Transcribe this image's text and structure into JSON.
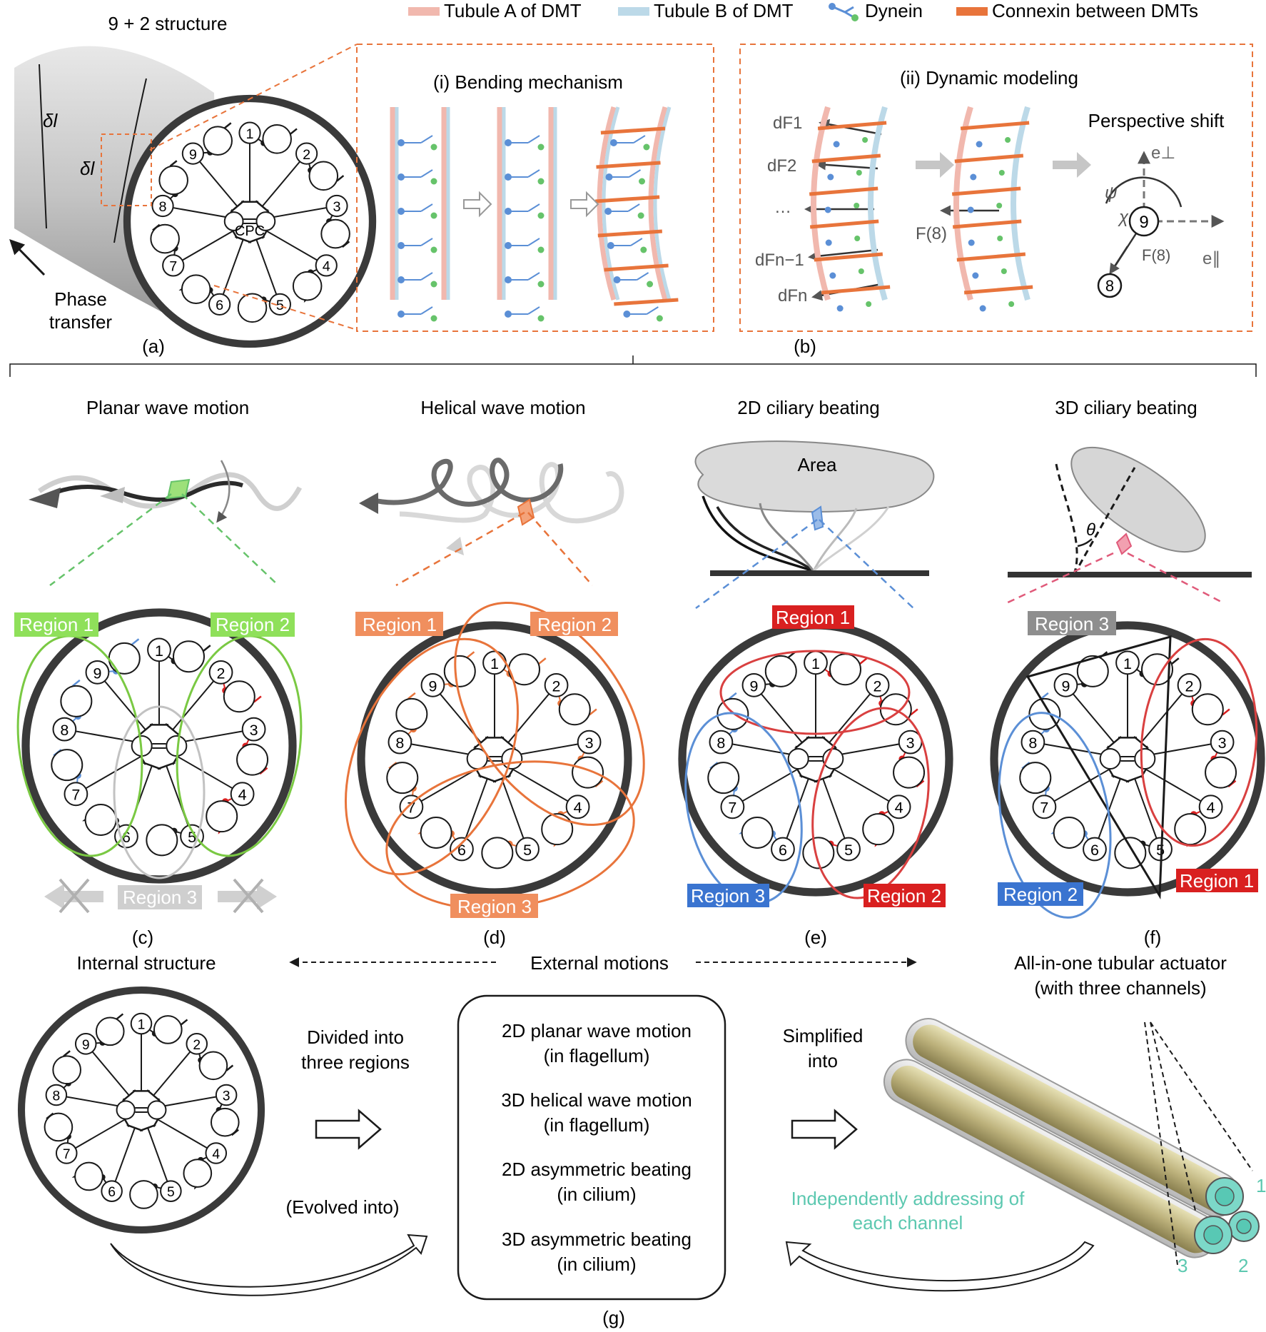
{
  "legend": [
    {
      "label": "Tubule A of DMT",
      "color": "#f1b8ae",
      "icon": "tubule-a-swatch"
    },
    {
      "label": "Tubule B of DMT",
      "color": "#bcd9e8",
      "icon": "tubule-b-swatch"
    },
    {
      "label": "Dynein",
      "color": "#5b8fd6",
      "icon": "dynein-icon"
    },
    {
      "label": "Connexin between DMTs",
      "color": "#e8743b",
      "icon": "connexin-swatch"
    }
  ],
  "panel_a": {
    "title": "9 + 2 structure",
    "dl1": "δl",
    "dl2": "δl",
    "cpc": "CPC",
    "phase1": "Phase",
    "phase2": "transfer",
    "caption": "(a)"
  },
  "panel_b": {
    "sub_i": "(i) Bending mechanism",
    "sub_ii": "(ii) Dynamic modeling",
    "perspective": "Perspective shift",
    "forces": [
      "dF1",
      "dF2",
      "…",
      "dFn−1",
      "dFn"
    ],
    "f8": "F(8)",
    "e_perp": "e⊥",
    "e_par": "e∥",
    "psi": "ψ",
    "chi": "χ",
    "caption": "(b)"
  },
  "motions": [
    {
      "title": "Planar wave motion",
      "caption": "(c)",
      "regions": [
        "Region 1",
        "Region 2",
        "Region 3"
      ]
    },
    {
      "title": "Helical wave motion",
      "caption": "(d)",
      "regions": [
        "Region 1",
        "Region 2",
        "Region 3"
      ]
    },
    {
      "title": "2D ciliary beating",
      "caption": "(e)",
      "area": "Area",
      "regions": [
        "Region 1",
        "Region 3",
        "Region 2"
      ]
    },
    {
      "title": "3D ciliary beating",
      "caption": "(f)",
      "theta": "θ",
      "regions": [
        "Region 3",
        "Region 2",
        "Region 1"
      ]
    }
  ],
  "bottom": {
    "internal": "Internal structure",
    "external": "External motions",
    "actuator1": "All-in-one tubular actuator",
    "actuator2": "(with three channels)",
    "divided1": "Divided into",
    "divided2": "three regions",
    "evolved": "(Evolved into)",
    "simplified1": "Simplified",
    "simplified2": "into",
    "box": [
      [
        "2D planar wave motion",
        "(in flagellum)"
      ],
      [
        "3D helical wave motion",
        "(in flagellum)"
      ],
      [
        "2D asymmetric beating",
        "(in cilium)"
      ],
      [
        "3D asymmetric beating",
        "(in cilium)"
      ]
    ],
    "independent1": "Independently addressing of",
    "independent2": "each channel",
    "channels": [
      "1",
      "2",
      "3"
    ],
    "caption": "(g)"
  },
  "doublet_numbers": [
    "1",
    "2",
    "3",
    "4",
    "5",
    "6",
    "7",
    "8",
    "9"
  ]
}
